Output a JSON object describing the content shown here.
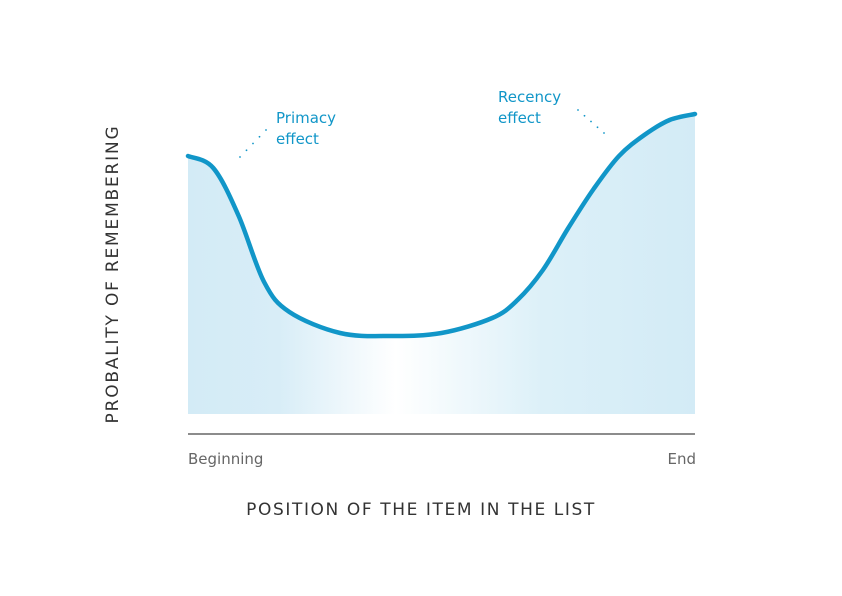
{
  "chart_data": {
    "type": "area",
    "title": "",
    "xlabel": "POSITION OF THE ITEM IN THE LIST",
    "ylabel": "PROBALITY OF REMEMBERING",
    "x_tick_labels": [
      "Beginning",
      "End"
    ],
    "annotations": [
      {
        "lines": [
          "Primacy",
          "effect"
        ],
        "x": 0.1
      },
      {
        "lines": [
          "Recency",
          "effect"
        ],
        "x": 0.82
      }
    ],
    "x": [
      0,
      0.05,
      0.1,
      0.15,
      0.2,
      0.3,
      0.4,
      0.5,
      0.6,
      0.65,
      0.7,
      0.75,
      0.8,
      0.85,
      0.9,
      0.95,
      1.0
    ],
    "y": [
      0.86,
      0.82,
      0.66,
      0.44,
      0.34,
      0.27,
      0.26,
      0.27,
      0.32,
      0.38,
      0.48,
      0.62,
      0.75,
      0.86,
      0.93,
      0.98,
      1.0
    ],
    "ylim": [
      0,
      1
    ],
    "grid": false,
    "colors": {
      "line": "#1196c8",
      "fill": "#d3ebf6",
      "axis": "#666666",
      "text": "#333333"
    }
  }
}
